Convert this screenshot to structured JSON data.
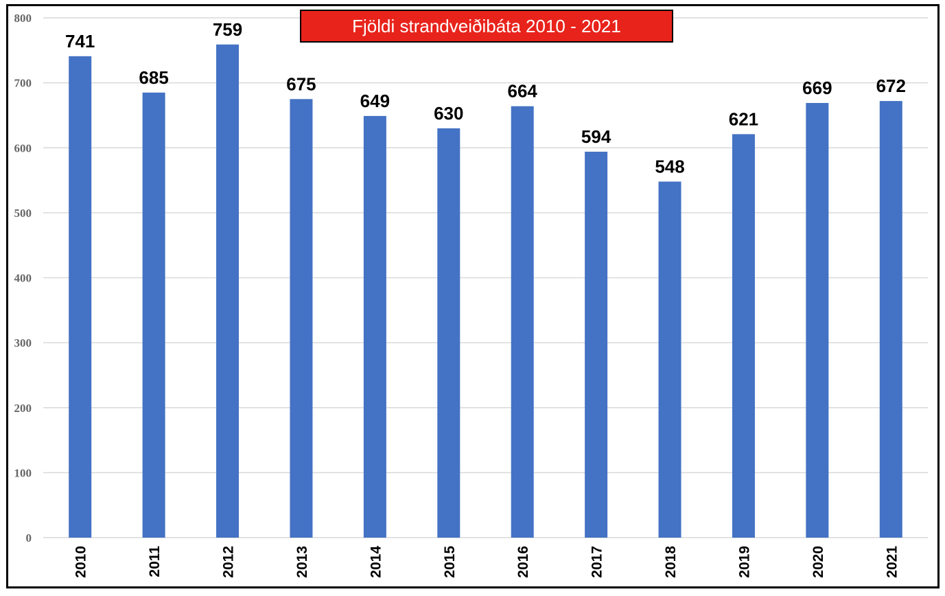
{
  "chart_data": {
    "type": "bar",
    "title": "Fjöldi strandveiðibáta 2010 - 2021",
    "categories": [
      "2010",
      "2011",
      "2012",
      "2013",
      "2014",
      "2015",
      "2016",
      "2017",
      "2018",
      "2019",
      "2020",
      "2021"
    ],
    "values": [
      741,
      685,
      759,
      675,
      649,
      630,
      664,
      594,
      548,
      621,
      669,
      672
    ],
    "xlabel": "",
    "ylabel": "",
    "ylim": [
      0,
      800
    ],
    "yticks": [
      0,
      100,
      200,
      300,
      400,
      500,
      600,
      700,
      800
    ],
    "grid": true,
    "legend": "none",
    "colors": {
      "bar": "#4472c4",
      "title_bg": "#e8231b",
      "grid": "#d9d9d9"
    }
  }
}
